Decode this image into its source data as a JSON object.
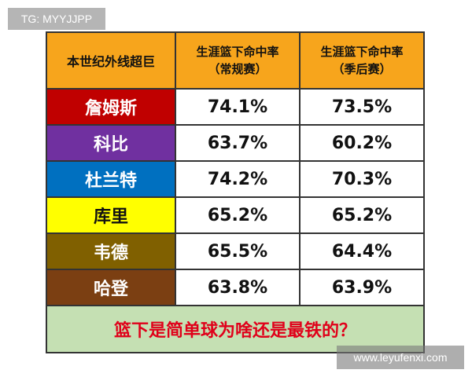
{
  "watermark_top": "TG: MYYJJPP",
  "watermark_bottom": "www.leyufenxi.com",
  "table": {
    "header": {
      "col1": "本世纪外线超巨",
      "col2_line1": "生涯篮下命中率",
      "col2_line2": "（常规赛）",
      "col3_line1": "生涯篮下命中率",
      "col3_line2": "（季后赛）"
    },
    "header_color": "#f7a51c",
    "rows": [
      {
        "name": "詹姆斯",
        "regular": "74.1%",
        "playoffs": "73.5%",
        "color": "#c00000",
        "text_color": "#ffffff"
      },
      {
        "name": "科比",
        "regular": "63.7%",
        "playoffs": "60.2%",
        "color": "#7030a0",
        "text_color": "#ffffff"
      },
      {
        "name": "杜兰特",
        "regular": "74.2%",
        "playoffs": "70.3%",
        "color": "#0070c0",
        "text_color": "#ffffff"
      },
      {
        "name": "库里",
        "regular": "65.2%",
        "playoffs": "65.2%",
        "color": "#ffff00",
        "text_color": "#111111"
      },
      {
        "name": "韦德",
        "regular": "65.5%",
        "playoffs": "64.4%",
        "color": "#806000",
        "text_color": "#ffffff"
      },
      {
        "name": "哈登",
        "regular": "63.8%",
        "playoffs": "63.9%",
        "color": "#7b3f12",
        "text_color": "#ffffff"
      }
    ],
    "footer": "篮下是简单球为啥还是最铁的？",
    "footer_bg": "#c5e0b3",
    "footer_text_color": "#e0001a"
  }
}
